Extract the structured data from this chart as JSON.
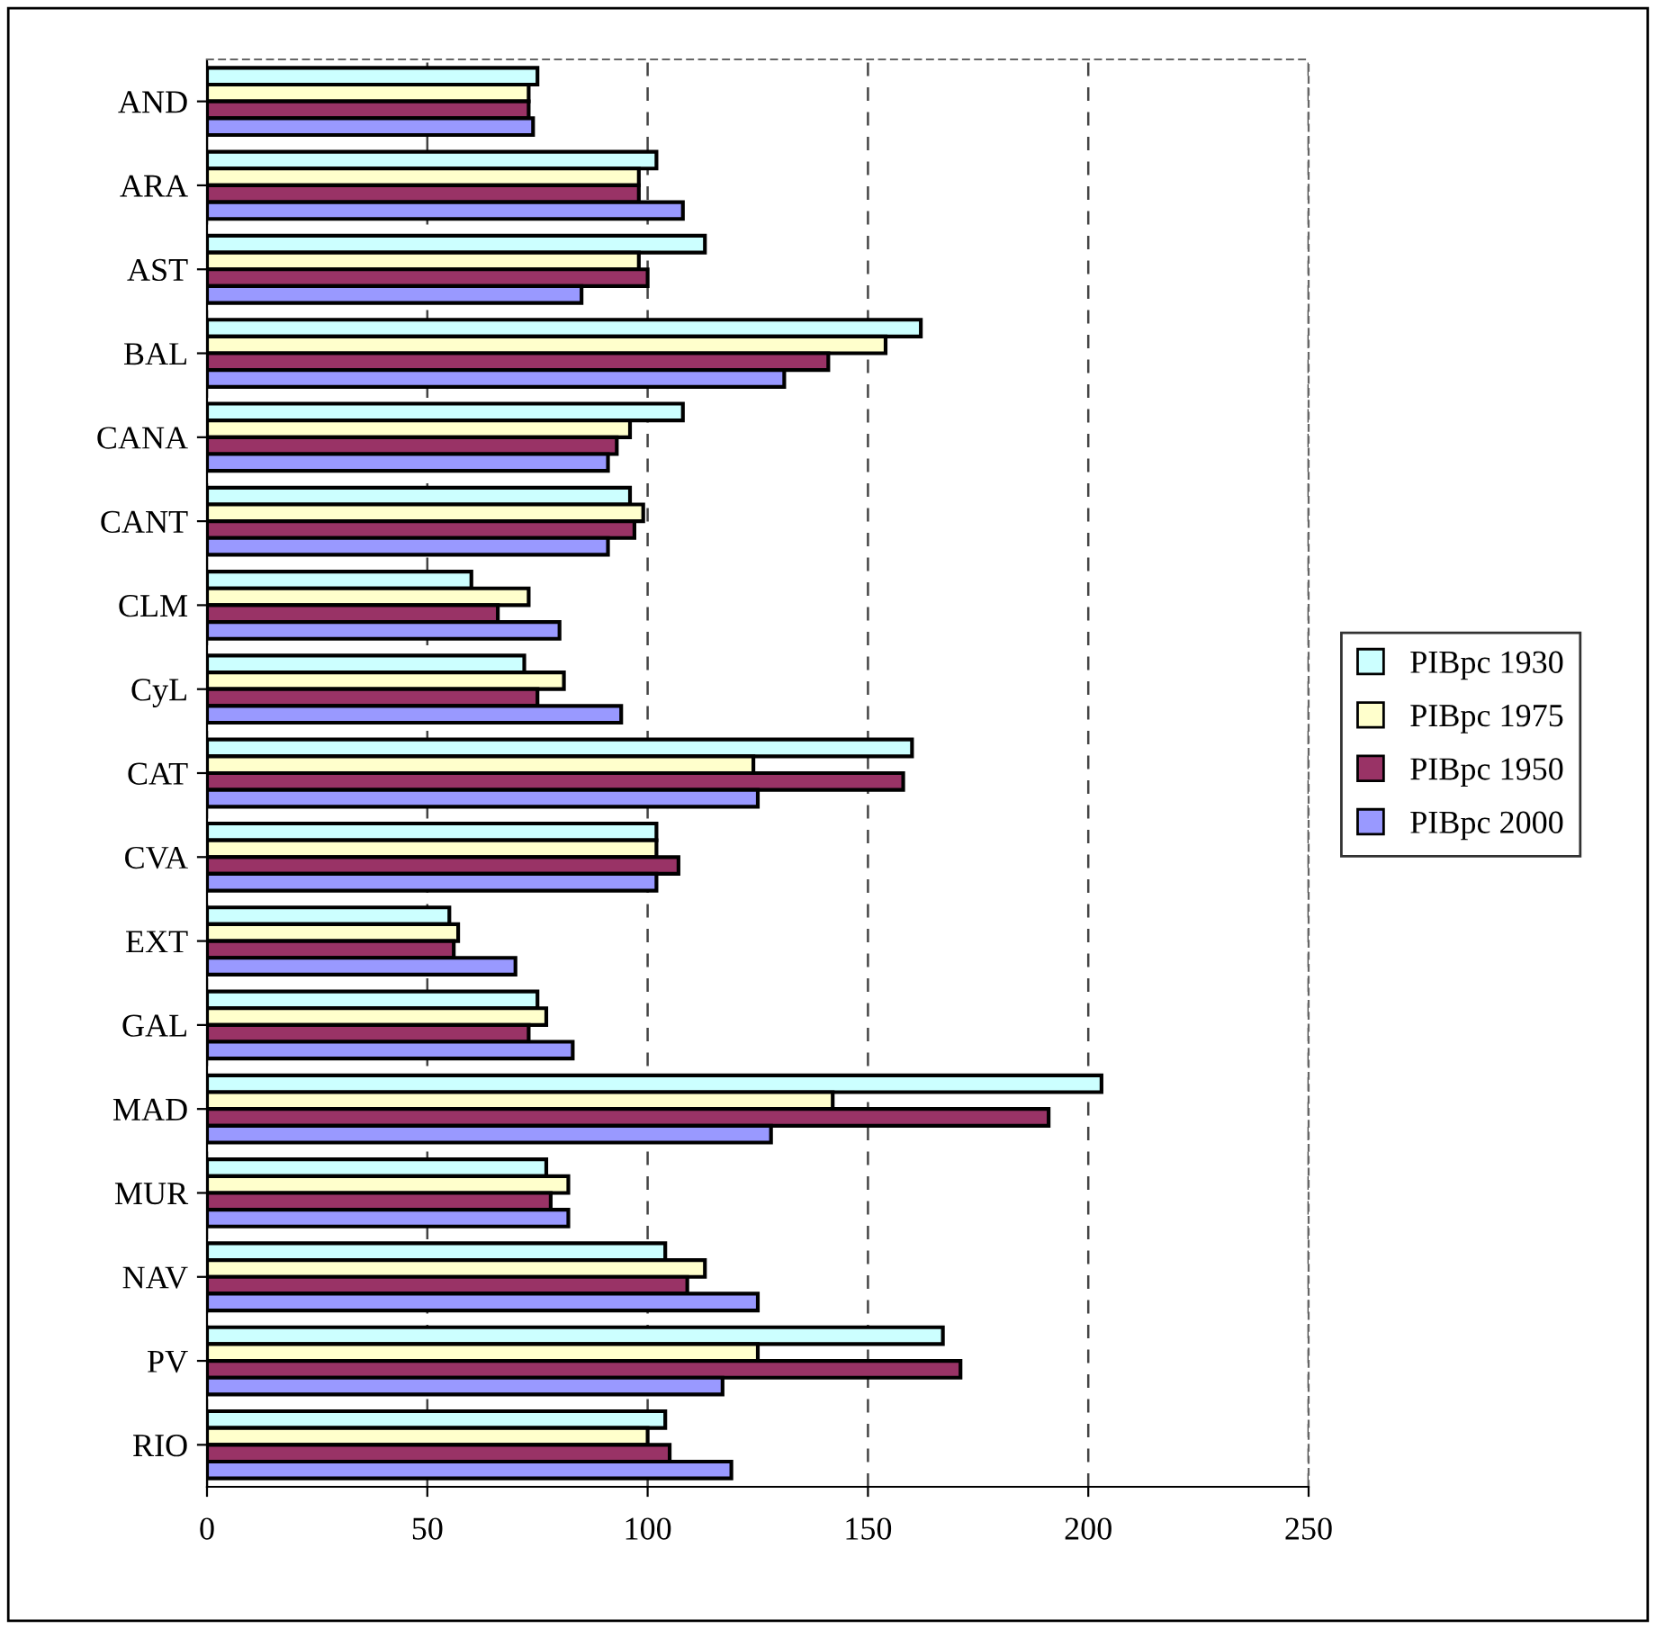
{
  "chart_data": {
    "type": "bar",
    "orientation": "horizontal",
    "categories": [
      "AND",
      "ARA",
      "AST",
      "BAL",
      "CANA",
      "CANT",
      "CLM",
      "CyL",
      "CAT",
      "CVA",
      "EXT",
      "GAL",
      "MAD",
      "MUR",
      "NAV",
      "PV",
      "RIO"
    ],
    "series": [
      {
        "name": "PIBpc 1930",
        "color": "#ccffff",
        "values": [
          75,
          102,
          113,
          162,
          108,
          96,
          60,
          72,
          160,
          102,
          55,
          75,
          203,
          77,
          104,
          167,
          104
        ]
      },
      {
        "name": "PIBpc 1975",
        "color": "#ffffcc",
        "values": [
          73,
          98,
          98,
          154,
          96,
          99,
          73,
          81,
          124,
          102,
          57,
          77,
          142,
          82,
          113,
          125,
          100
        ]
      },
      {
        "name": "PIBpc 1950",
        "color": "#993366",
        "values": [
          73,
          98,
          100,
          141,
          93,
          97,
          66,
          75,
          158,
          107,
          56,
          73,
          191,
          78,
          109,
          171,
          105
        ]
      },
      {
        "name": "PIBpc 2000",
        "color": "#9999ff",
        "values": [
          74,
          108,
          85,
          131,
          91,
          91,
          80,
          94,
          125,
          102,
          70,
          83,
          128,
          82,
          125,
          117,
          119
        ]
      }
    ],
    "xlim": [
      0,
      250
    ],
    "xticks": [
      0,
      50,
      100,
      150,
      200,
      250
    ],
    "grid": "x",
    "legend": "right"
  }
}
